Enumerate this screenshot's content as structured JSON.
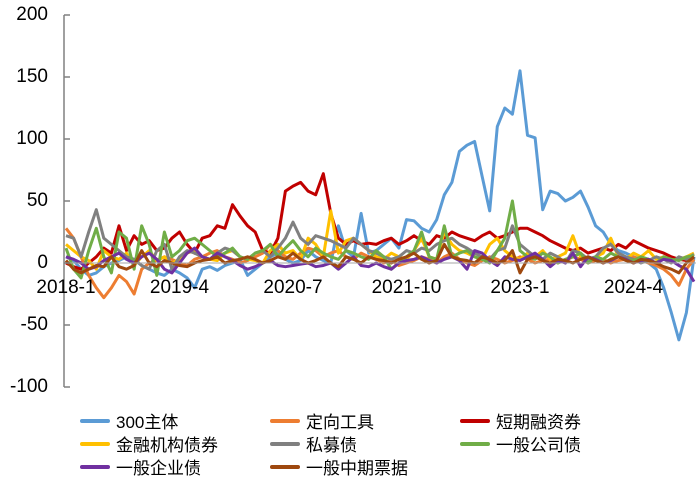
{
  "chart_data": {
    "type": "line",
    "title": "",
    "xlabel": "",
    "ylabel": "",
    "ylim": [
      -100,
      200
    ],
    "yticks": [
      200,
      150,
      100,
      50,
      0,
      -50,
      -100
    ],
    "xtick_labels": [
      "2018-1",
      "2019-4",
      "2020-7",
      "2021-10",
      "2023-1",
      "2024-4"
    ],
    "xtick_indices": [
      0,
      15,
      30,
      45,
      60,
      75
    ],
    "x_start": "2018-1",
    "x_end": "2024-12",
    "n_points": 84,
    "grid": false,
    "legend_position": "bottom",
    "series": [
      {
        "name": "300主体",
        "color": "#5b9bd5",
        "values": [
          5,
          2,
          -5,
          -10,
          -8,
          -3,
          0,
          2,
          5,
          3,
          -2,
          -5,
          -8,
          -10,
          -5,
          -8,
          -12,
          -20,
          -5,
          -3,
          -6,
          -2,
          0,
          3,
          -10,
          -5,
          0,
          5,
          8,
          3,
          0,
          2,
          10,
          5,
          2,
          0,
          30,
          10,
          5,
          40,
          8,
          10,
          15,
          20,
          12,
          35,
          34,
          28,
          25,
          35,
          55,
          65,
          90,
          95,
          98,
          70,
          42,
          110,
          125,
          120,
          155,
          103,
          101,
          43,
          58,
          56,
          50,
          53,
          58,
          45,
          30,
          25,
          15,
          10,
          8,
          5,
          3,
          0,
          -5,
          -20,
          -40,
          -62,
          -40,
          5
        ]
      },
      {
        "name": "定向工具",
        "color": "#ed7d31",
        "values": [
          28,
          20,
          5,
          -10,
          -20,
          -28,
          -20,
          -10,
          -15,
          -25,
          -5,
          0,
          2,
          5,
          3,
          0,
          -2,
          3,
          5,
          8,
          10,
          5,
          3,
          0,
          2,
          5,
          8,
          15,
          10,
          5,
          3,
          8,
          12,
          10,
          5,
          8,
          10,
          5,
          3,
          8,
          5,
          3,
          0,
          2,
          -2,
          0,
          2,
          5,
          3,
          0,
          5,
          8,
          3,
          0,
          -2,
          2,
          5,
          3,
          0,
          2,
          5,
          3,
          0,
          2,
          3,
          0,
          2,
          5,
          3,
          0,
          2,
          3,
          0,
          2,
          3,
          5,
          2,
          0,
          -2,
          -5,
          -10,
          -18,
          -5,
          3
        ]
      },
      {
        "name": "短期融资券",
        "color": "#c00000",
        "values": [
          0,
          -3,
          -5,
          0,
          5,
          12,
          8,
          30,
          10,
          22,
          15,
          18,
          10,
          12,
          20,
          25,
          15,
          8,
          20,
          22,
          30,
          28,
          47,
          38,
          30,
          25,
          10,
          8,
          20,
          58,
          62,
          65,
          58,
          55,
          72,
          40,
          20,
          15,
          18,
          15,
          16,
          15,
          18,
          20,
          15,
          18,
          22,
          18,
          15,
          22,
          20,
          25,
          22,
          20,
          18,
          22,
          25,
          20,
          22,
          25,
          28,
          28,
          25,
          22,
          18,
          15,
          12,
          10,
          12,
          8,
          10,
          12,
          10,
          15,
          12,
          18,
          15,
          12,
          10,
          8,
          5,
          3,
          2,
          5
        ]
      },
      {
        "name": "金融机构债券",
        "color": "#ffc000",
        "values": [
          15,
          10,
          5,
          2,
          -5,
          10,
          5,
          3,
          8,
          -2,
          5,
          10,
          2,
          5,
          0,
          3,
          8,
          10,
          5,
          3,
          2,
          8,
          10,
          5,
          3,
          2,
          0,
          10,
          15,
          8,
          10,
          3,
          20,
          15,
          5,
          42,
          8,
          18,
          20,
          15,
          10,
          5,
          3,
          8,
          5,
          3,
          10,
          20,
          5,
          3,
          25,
          15,
          10,
          8,
          5,
          3,
          15,
          20,
          10,
          5,
          3,
          8,
          5,
          10,
          3,
          5,
          8,
          22,
          5,
          3,
          5,
          8,
          20,
          5,
          3,
          8,
          5,
          10,
          3,
          5,
          2,
          3,
          5,
          8
        ]
      },
      {
        "name": "私募债",
        "color": "#808080",
        "values": [
          22,
          20,
          5,
          25,
          43,
          20,
          15,
          10,
          5,
          3,
          -2,
          -5,
          10,
          15,
          -5,
          5,
          10,
          8,
          5,
          3,
          8,
          12,
          10,
          5,
          3,
          8,
          10,
          5,
          12,
          20,
          33,
          20,
          15,
          22,
          20,
          18,
          15,
          12,
          20,
          15,
          10,
          8,
          5,
          3,
          5,
          10,
          8,
          12,
          10,
          15,
          18,
          20,
          15,
          12,
          8,
          5,
          3,
          10,
          12,
          30,
          15,
          10,
          5,
          3,
          8,
          5,
          0,
          10,
          8,
          3,
          5,
          12,
          15,
          8,
          5,
          3,
          0,
          2,
          5,
          3,
          0,
          5,
          3,
          7
        ]
      },
      {
        "name": "一般公司债",
        "color": "#70ad47",
        "values": [
          12,
          -5,
          -12,
          10,
          28,
          5,
          -8,
          25,
          20,
          -5,
          30,
          15,
          -10,
          25,
          5,
          10,
          18,
          20,
          15,
          10,
          5,
          8,
          12,
          5,
          3,
          8,
          10,
          15,
          5,
          12,
          18,
          10,
          5,
          12,
          8,
          5,
          3,
          10,
          8,
          5,
          3,
          10,
          5,
          -5,
          0,
          5,
          10,
          25,
          5,
          3,
          30,
          5,
          8,
          10,
          5,
          3,
          0,
          10,
          20,
          50,
          10,
          5,
          3,
          8,
          5,
          0,
          3,
          5,
          8,
          0,
          5,
          3,
          8,
          5,
          3,
          2,
          5,
          3,
          0,
          5,
          3,
          2,
          5,
          6
        ]
      },
      {
        "name": "一般企业债",
        "color": "#7030a0",
        "values": [
          5,
          3,
          0,
          -5,
          -3,
          2,
          5,
          8,
          3,
          0,
          5,
          8,
          3,
          -5,
          -8,
          0,
          8,
          12,
          5,
          3,
          8,
          5,
          2,
          -2,
          -5,
          -3,
          0,
          2,
          -2,
          -3,
          -2,
          -1,
          0,
          -3,
          -2,
          0,
          -5,
          0,
          5,
          -2,
          -3,
          0,
          -3,
          -5,
          0,
          2,
          3,
          5,
          2,
          0,
          3,
          5,
          2,
          -5,
          10,
          8,
          2,
          -2,
          5,
          3,
          2,
          5,
          8,
          3,
          -3,
          2,
          0,
          8,
          -3,
          5,
          3,
          0,
          2,
          5,
          3,
          0,
          2,
          3,
          0,
          3,
          2,
          -2,
          -5,
          -15
        ]
      },
      {
        "name": "一般中期票据",
        "color": "#9e480e",
        "values": [
          2,
          -5,
          -8,
          -5,
          -2,
          -3,
          5,
          -3,
          -5,
          -2,
          10,
          0,
          -3,
          2,
          0,
          -2,
          -3,
          0,
          2,
          3,
          5,
          0,
          2,
          3,
          5,
          3,
          0,
          2,
          5,
          3,
          8,
          3,
          0,
          2,
          5,
          0,
          -3,
          5,
          3,
          0,
          5,
          3,
          2,
          0,
          3,
          5,
          8,
          3,
          0,
          2,
          15,
          5,
          3,
          2,
          0,
          5,
          3,
          0,
          2,
          10,
          -8,
          3,
          5,
          2,
          0,
          3,
          2,
          0,
          3,
          5,
          2,
          0,
          3,
          5,
          2,
          0,
          3,
          2,
          0,
          -3,
          -5,
          -8,
          0,
          5
        ]
      }
    ]
  },
  "legend": {
    "items": [
      {
        "label": "300主体",
        "color": "#5b9bd5"
      },
      {
        "label": "定向工具",
        "color": "#ed7d31"
      },
      {
        "label": "短期融资券",
        "color": "#c00000"
      },
      {
        "label": "金融机构债券",
        "color": "#ffc000"
      },
      {
        "label": "私募债",
        "color": "#808080"
      },
      {
        "label": "一般公司债",
        "color": "#70ad47"
      },
      {
        "label": "一般企业债",
        "color": "#7030a0"
      },
      {
        "label": "一般中期票据",
        "color": "#9e480e"
      }
    ]
  }
}
